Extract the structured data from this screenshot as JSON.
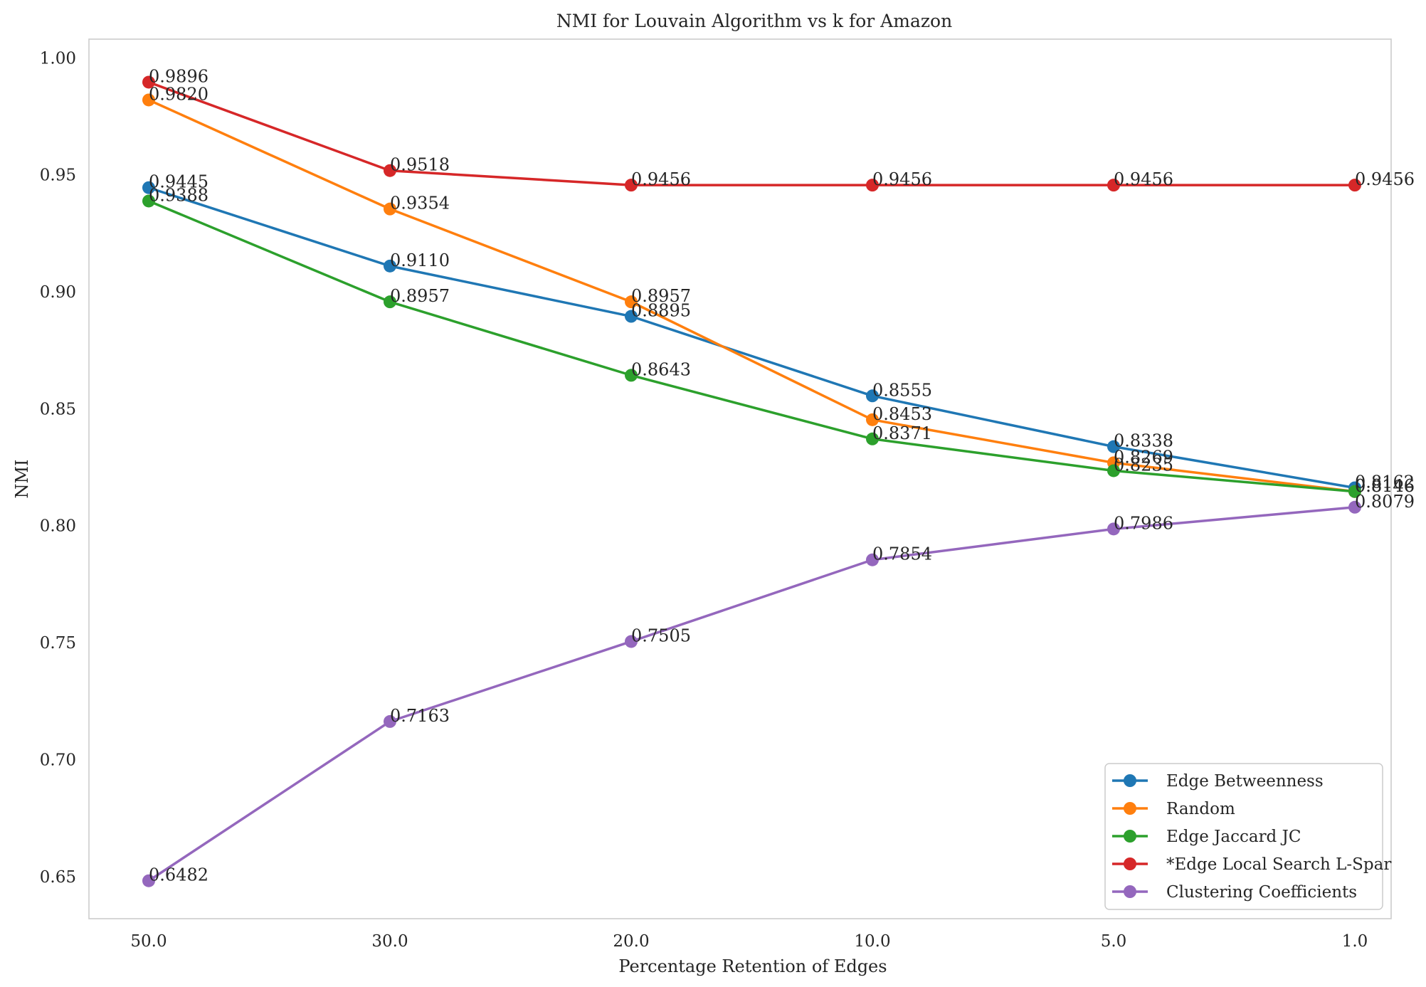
{
  "chart_data": {
    "type": "line",
    "title": "NMI for Louvain Algorithm vs k for Amazon",
    "xlabel": "Percentage Retention of Edges",
    "ylabel": "NMI",
    "categories": [
      "50.0",
      "30.0",
      "20.0",
      "10.0",
      "5.0",
      "1.0"
    ],
    "y_ticks": [
      "0.65",
      "0.70",
      "0.75",
      "0.80",
      "0.85",
      "0.90",
      "0.95",
      "1.00"
    ],
    "ylim": [
      0.632,
      1.008
    ],
    "grid": false,
    "legend_position": "bottom-right",
    "series": [
      {
        "name": "Edge Betweenness",
        "color": "#1f77b4",
        "values": [
          0.9445,
          0.911,
          0.8895,
          0.8555,
          0.8338,
          0.8162
        ],
        "labels": [
          "0.9445",
          "0.9110",
          "0.8895",
          "0.8555",
          "0.8338",
          "0.8162"
        ]
      },
      {
        "name": "Random",
        "color": "#ff7f0e",
        "values": [
          0.982,
          0.9354,
          0.8957,
          0.8453,
          0.8269,
          0.8146
        ],
        "labels": [
          "0.9820",
          "0.9354",
          "0.8957",
          "0.8453",
          "0.8269",
          "0.8146"
        ]
      },
      {
        "name": "Edge Jaccard JC",
        "color": "#2ca02c",
        "values": [
          0.9388,
          0.8957,
          0.8643,
          0.8371,
          0.8235,
          0.8146
        ],
        "labels": [
          "0.9388",
          "0.8957",
          "0.8643",
          "0.8371",
          "0.8235",
          "0.8146"
        ]
      },
      {
        "name": "*Edge Local Search L-Spar",
        "color": "#d62728",
        "values": [
          0.9896,
          0.9518,
          0.9456,
          0.9456,
          0.9456,
          0.9456
        ],
        "labels": [
          "0.9896",
          "0.9518",
          "0.9456",
          "0.9456",
          "0.9456",
          "0.9456"
        ]
      },
      {
        "name": "Clustering Coefficients",
        "color": "#9467bd",
        "values": [
          0.6482,
          0.7163,
          0.7505,
          0.7854,
          0.7986,
          0.8079
        ],
        "labels": [
          "0.6482",
          "0.7163",
          "0.7505",
          "0.7854",
          "0.7986",
          "0.8079"
        ]
      }
    ]
  }
}
